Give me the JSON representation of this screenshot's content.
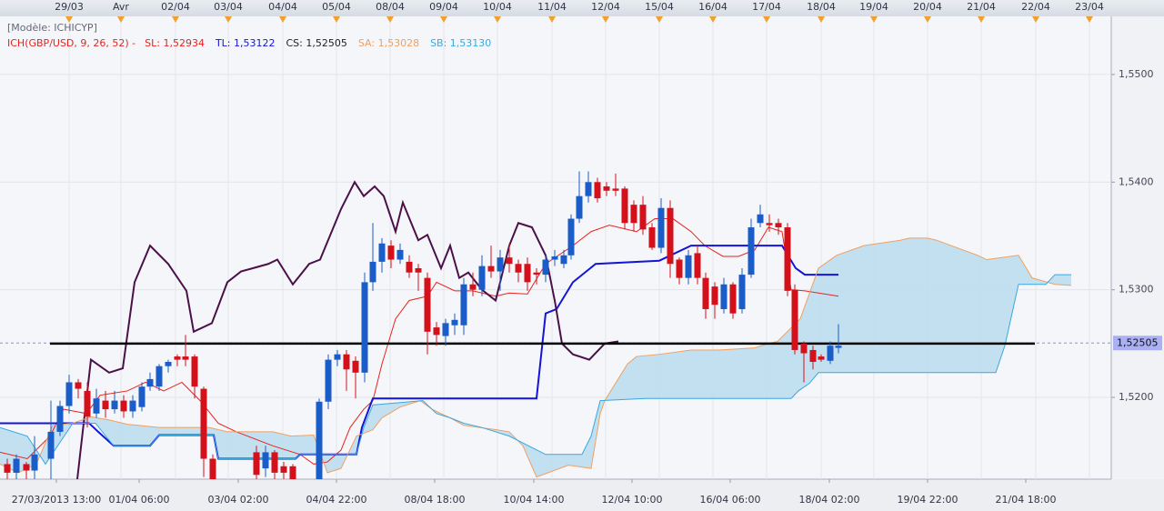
{
  "chart_data": {
    "type": "candlestick",
    "model_label": "[Modèle: ICHICYP]",
    "indicator_label": "ICH(GBP/USD, 9, 26, 52) -",
    "up_color": "#1a5cc8",
    "down_color": "#d4111b",
    "cloud_color": "#b9dcee",
    "xlim": [
      0,
      122.2
    ],
    "ylim": [
      1.5124,
      1.5554
    ],
    "yticks": [
      {
        "value": 1.52,
        "label": "1,5200"
      },
      {
        "value": 1.53,
        "label": "1,5300"
      },
      {
        "value": 1.54,
        "label": "1,5400"
      },
      {
        "value": 1.55,
        "label": "1,5500"
      }
    ],
    "top_ticks": [
      {
        "value": 7.6,
        "label": "29/03"
      },
      {
        "value": 13.3,
        "label": "Avr"
      },
      {
        "value": 19.3,
        "label": "02/04"
      },
      {
        "value": 25.1,
        "label": "03/04"
      },
      {
        "value": 31.1,
        "label": "04/04"
      },
      {
        "value": 37.0,
        "label": "05/04"
      },
      {
        "value": 42.9,
        "label": "08/04"
      },
      {
        "value": 48.8,
        "label": "09/04"
      },
      {
        "value": 54.7,
        "label": "10/04"
      },
      {
        "value": 60.7,
        "label": "11/04"
      },
      {
        "value": 66.6,
        "label": "12/04"
      },
      {
        "value": 72.5,
        "label": "15/04"
      },
      {
        "value": 78.4,
        "label": "16/04"
      },
      {
        "value": 84.3,
        "label": "17/04"
      },
      {
        "value": 90.3,
        "label": "18/04"
      },
      {
        "value": 96.1,
        "label": "19/04"
      },
      {
        "value": 102.0,
        "label": "20/04"
      },
      {
        "value": 107.9,
        "label": "21/04"
      },
      {
        "value": 113.9,
        "label": "22/04"
      },
      {
        "value": 119.8,
        "label": "23/04"
      }
    ],
    "bottom_ticks": [
      {
        "value": 6.2,
        "label": "27/03/2013 13:00"
      },
      {
        "value": 15.3,
        "label": "01/04 06:00"
      },
      {
        "value": 26.2,
        "label": "03/04 02:00"
      },
      {
        "value": 37.0,
        "label": "04/04 22:00"
      },
      {
        "value": 47.8,
        "label": "08/04 18:00"
      },
      {
        "value": 58.7,
        "label": "10/04 14:00"
      },
      {
        "value": 69.5,
        "label": "12/04 10:00"
      },
      {
        "value": 80.3,
        "label": "16/04 06:00"
      },
      {
        "value": 91.2,
        "label": "18/04 02:00"
      },
      {
        "value": 102.0,
        "label": "19/04 22:00"
      },
      {
        "value": 112.8,
        "label": "21/04 18:00"
      }
    ],
    "last_price": {
      "value": 1.52505,
      "label": "1,52505"
    },
    "x": [
      0.8,
      1.8,
      2.9,
      3.8,
      5.6,
      6.6,
      7.6,
      8.6,
      9.6,
      10.6,
      11.6,
      12.6,
      13.6,
      14.6,
      15.6,
      16.5,
      17.5,
      18.5,
      19.5,
      20.4,
      21.4,
      22.4,
      23.4,
      28.2,
      29.2,
      30.2,
      31.2,
      32.2,
      35.1,
      36.1,
      37.1,
      38.1,
      39.1,
      40.1,
      41.0,
      42.0,
      43.0,
      44.0,
      45.0,
      46.0,
      47.0,
      48.0,
      49.0,
      50.0,
      51.0,
      52.0,
      53.0,
      54.0,
      55.0,
      56.0,
      57.0,
      58.0,
      59.0,
      60.0,
      61.0,
      62.0,
      62.8,
      63.7,
      64.7,
      65.7,
      66.7,
      67.7,
      68.7,
      69.7,
      70.7,
      71.7,
      72.7,
      73.7,
      74.7,
      75.7,
      76.7,
      77.6,
      78.6,
      79.6,
      80.6,
      81.6,
      82.6,
      83.6,
      84.6,
      85.6,
      86.6,
      87.4,
      88.4,
      89.4,
      90.3,
      91.3,
      92.2
    ],
    "open": [
      1.5138,
      1.513,
      1.5138,
      1.5132,
      1.5143,
      1.5168,
      1.5192,
      1.5214,
      1.5206,
      1.5185,
      1.5197,
      1.5189,
      1.5197,
      1.5187,
      1.5191,
      1.521,
      1.521,
      1.5229,
      1.5238,
      1.5238,
      1.5238,
      1.5208,
      1.5143,
      1.5149,
      1.5134,
      1.5149,
      1.5136,
      1.5136,
      1.5124,
      1.5196,
      1.5235,
      1.524,
      1.5234,
      1.5223,
      1.5307,
      1.5326,
      1.5341,
      1.5328,
      1.5326,
      1.532,
      1.5311,
      1.5265,
      1.5257,
      1.5267,
      1.5267,
      1.5305,
      1.53,
      1.5322,
      1.5317,
      1.533,
      1.5324,
      1.5324,
      1.5316,
      1.5314,
      1.5328,
      1.5324,
      1.5332,
      1.5366,
      1.5387,
      1.54,
      1.5396,
      1.5394,
      1.5394,
      1.5379,
      1.5379,
      1.5358,
      1.5339,
      1.5376,
      1.5328,
      1.5311,
      1.5334,
      1.5311,
      1.5303,
      1.5282,
      1.5305,
      1.5282,
      1.5314,
      1.5362,
      1.5362,
      1.5362,
      1.5358,
      1.53,
      1.525,
      1.5244,
      1.5238,
      1.5234,
      1.5246
    ],
    "high": [
      1.5143,
      1.5147,
      1.514,
      1.5164,
      1.5197,
      1.5197,
      1.5221,
      1.5217,
      1.5214,
      1.5208,
      1.5206,
      1.5206,
      1.5202,
      1.5202,
      1.5214,
      1.5223,
      1.5231,
      1.5235,
      1.524,
      1.5258,
      1.524,
      1.521,
      1.5147,
      1.5155,
      1.5155,
      1.5151,
      1.514,
      1.5138,
      1.5199,
      1.524,
      1.5244,
      1.5244,
      1.5238,
      1.5316,
      1.5362,
      1.5348,
      1.5346,
      1.5343,
      1.5332,
      1.5324,
      1.5316,
      1.527,
      1.5273,
      1.5278,
      1.5311,
      1.5316,
      1.5332,
      1.5341,
      1.5337,
      1.5343,
      1.5328,
      1.533,
      1.532,
      1.5332,
      1.5337,
      1.5337,
      1.537,
      1.541,
      1.541,
      1.5404,
      1.54,
      1.5408,
      1.5396,
      1.5383,
      1.5387,
      1.5362,
      1.5385,
      1.5383,
      1.533,
      1.5337,
      1.5341,
      1.5316,
      1.5307,
      1.5311,
      1.5307,
      1.532,
      1.5366,
      1.5379,
      1.537,
      1.5366,
      1.5362,
      1.5305,
      1.5252,
      1.5248,
      1.524,
      1.5252,
      1.5268
    ],
    "low": [
      1.5124,
      1.5124,
      1.5124,
      1.5124,
      1.5124,
      1.5164,
      1.5185,
      1.5199,
      1.5172,
      1.5181,
      1.5181,
      1.5185,
      1.5181,
      1.5181,
      1.5187,
      1.5206,
      1.5206,
      1.5223,
      1.5229,
      1.5229,
      1.5199,
      1.5126,
      1.5124,
      1.5124,
      1.5126,
      1.5124,
      1.5124,
      1.5124,
      1.5124,
      1.5189,
      1.5229,
      1.5206,
      1.5199,
      1.5214,
      1.5299,
      1.5316,
      1.532,
      1.5324,
      1.5311,
      1.5299,
      1.524,
      1.5248,
      1.5248,
      1.5258,
      1.5258,
      1.5294,
      1.5294,
      1.5311,
      1.5299,
      1.5316,
      1.5307,
      1.5299,
      1.5305,
      1.5307,
      1.5322,
      1.532,
      1.5328,
      1.5362,
      1.5381,
      1.5381,
      1.5387,
      1.5387,
      1.5356,
      1.5354,
      1.5351,
      1.5337,
      1.5334,
      1.5311,
      1.5305,
      1.5305,
      1.5305,
      1.5273,
      1.5273,
      1.5278,
      1.5273,
      1.5278,
      1.5311,
      1.5358,
      1.5354,
      1.5351,
      1.5294,
      1.524,
      1.5214,
      1.5226,
      1.5233,
      1.5231,
      1.5241
    ],
    "close": [
      1.513,
      1.5143,
      1.5132,
      1.5147,
      1.5168,
      1.5192,
      1.5214,
      1.5208,
      1.5182,
      1.5199,
      1.5189,
      1.5197,
      1.5187,
      1.5197,
      1.521,
      1.5217,
      1.5229,
      1.5233,
      1.5235,
      1.5235,
      1.521,
      1.5143,
      1.5124,
      1.5128,
      1.5149,
      1.513,
      1.513,
      1.5124,
      1.5196,
      1.5235,
      1.524,
      1.5226,
      1.5223,
      1.5307,
      1.5326,
      1.5343,
      1.5328,
      1.5337,
      1.5316,
      1.5316,
      1.5261,
      1.5258,
      1.5269,
      1.5272,
      1.5305,
      1.53,
      1.5322,
      1.5317,
      1.533,
      1.5324,
      1.5316,
      1.5307,
      1.5314,
      1.5328,
      1.5331,
      1.5332,
      1.5366,
      1.5387,
      1.54,
      1.5385,
      1.5392,
      1.5392,
      1.5362,
      1.5362,
      1.5356,
      1.5339,
      1.5376,
      1.5324,
      1.5311,
      1.5332,
      1.5311,
      1.5282,
      1.5286,
      1.5305,
      1.5278,
      1.5314,
      1.5358,
      1.537,
      1.536,
      1.5358,
      1.5299,
      1.5244,
      1.5241,
      1.5233,
      1.5235,
      1.5248,
      1.5248
    ],
    "cloud": {
      "upper": "SA",
      "lower": "SB"
    },
    "lines": [
      {
        "name": "SL: 1,52934",
        "color": "#e8231e",
        "width": 1,
        "x": [
          0,
          3,
          5.5,
          7,
          9.5,
          11,
          14,
          16,
          18,
          20,
          22,
          24,
          26,
          30,
          33,
          34.5,
          36,
          37.5,
          38.5,
          40,
          41,
          42,
          43.5,
          45,
          47,
          48,
          50,
          52,
          54.5,
          56,
          58,
          60,
          63,
          65,
          67,
          70,
          72,
          74,
          76,
          77.5,
          79.5,
          81.2,
          83,
          84.5,
          86,
          87,
          88.5,
          92.2
        ],
        "values": [
          1.5149,
          1.5143,
          1.5164,
          1.5189,
          1.5185,
          1.5202,
          1.5206,
          1.5214,
          1.5206,
          1.5214,
          1.5197,
          1.5176,
          1.5168,
          1.5155,
          1.5147,
          1.5138,
          1.514,
          1.5151,
          1.5172,
          1.5189,
          1.5197,
          1.5231,
          1.5273,
          1.529,
          1.5294,
          1.5307,
          1.5299,
          1.5299,
          1.5294,
          1.5297,
          1.5296,
          1.5324,
          1.5341,
          1.5354,
          1.536,
          1.5354,
          1.5366,
          1.5366,
          1.5354,
          1.5341,
          1.5331,
          1.5331,
          1.5337,
          1.5358,
          1.5354,
          1.53,
          1.5299,
          1.5294
        ]
      },
      {
        "name": "TL: 1,53122",
        "color": "#1414d8",
        "width": 2,
        "x": [
          0,
          9.8,
          10.8,
          12.5,
          16.5,
          17.5,
          23.5,
          24,
          32.5,
          33,
          39.2,
          39.8,
          41,
          59,
          60,
          61.2,
          63,
          65.5,
          72.5,
          76,
          86,
          87.5,
          88.5,
          92.2
        ],
        "values": [
          1.5176,
          1.5176,
          1.5168,
          1.5155,
          1.5155,
          1.5165,
          1.5165,
          1.5143,
          1.5143,
          1.5147,
          1.5147,
          1.5172,
          1.5199,
          1.5199,
          1.5278,
          1.5282,
          1.5307,
          1.5324,
          1.5327,
          1.5341,
          1.5341,
          1.532,
          1.5314,
          1.5314
        ]
      },
      {
        "name": "CS: 1,52505",
        "color": "#4a1048",
        "width": 2,
        "x": [
          8.5,
          10,
          12,
          13.5,
          14.8,
          16.5,
          18.5,
          20.5,
          21.3,
          23.3,
          25,
          26.5,
          27.8,
          29.5,
          30.5,
          32.2,
          34,
          35.2,
          37.5,
          39,
          40,
          41.2,
          42.2,
          43.5,
          44.3,
          46,
          47,
          48.5,
          49.5,
          50.5,
          51.5,
          53,
          54.5,
          56,
          57,
          58.5,
          60,
          61,
          61.8,
          63,
          64.8,
          66.5,
          68
        ],
        "values": [
          1.5124,
          1.5235,
          1.5223,
          1.5227,
          1.5307,
          1.5341,
          1.5324,
          1.5299,
          1.5261,
          1.5269,
          1.5307,
          1.5317,
          1.532,
          1.5324,
          1.5328,
          1.5305,
          1.5324,
          1.5328,
          1.5375,
          1.54,
          1.5387,
          1.5396,
          1.5387,
          1.5354,
          1.5381,
          1.5346,
          1.5351,
          1.532,
          1.5341,
          1.5311,
          1.5316,
          1.53,
          1.529,
          1.5341,
          1.5362,
          1.5358,
          1.5332,
          1.529,
          1.525,
          1.524,
          1.5235,
          1.525,
          1.5252
        ]
      },
      {
        "name": "SA: 1,53028",
        "color": "#f0a060",
        "width": 1,
        "x": [
          0,
          2,
          4,
          5.8,
          8,
          10,
          12,
          14,
          17.5,
          23,
          25,
          30,
          32,
          34.5,
          36,
          37.5,
          39.2,
          41,
          42,
          44,
          46.2,
          47.5,
          49.5,
          51,
          54.5,
          56,
          57.5,
          59,
          62.5,
          65,
          66,
          66.5,
          69,
          70,
          72.5,
          76,
          79,
          83,
          84.5,
          85.5,
          88,
          90,
          92,
          95,
          99,
          100,
          102,
          103,
          107.5,
          108.5,
          112,
          113.5,
          116,
          117.8
        ],
        "values": [
          1.5138,
          1.513,
          1.5138,
          1.5174,
          1.5176,
          1.5182,
          1.5179,
          1.5175,
          1.5172,
          1.5172,
          1.5168,
          1.5168,
          1.5164,
          1.5165,
          1.513,
          1.5134,
          1.5164,
          1.517,
          1.5181,
          1.5191,
          1.5197,
          1.5189,
          1.5181,
          1.5174,
          1.517,
          1.5168,
          1.5155,
          1.5126,
          1.5137,
          1.5134,
          1.5185,
          1.5197,
          1.5231,
          1.5238,
          1.524,
          1.5244,
          1.5244,
          1.5246,
          1.525,
          1.5252,
          1.5273,
          1.532,
          1.5332,
          1.5341,
          1.5346,
          1.5348,
          1.5348,
          1.5346,
          1.5332,
          1.5328,
          1.5332,
          1.5311,
          1.5305,
          1.5304
        ]
      },
      {
        "name": "SB: 1,53130",
        "color": "#38a8e0",
        "width": 1,
        "x": [
          0,
          3,
          5,
          8,
          10.5,
          12.5,
          16.5,
          17.5,
          23.5,
          24,
          32.5,
          33,
          39.2,
          40,
          41,
          46.5,
          48,
          49.5,
          51,
          53,
          54.5,
          56,
          60,
          64,
          65,
          66,
          71,
          87,
          87.8,
          89,
          90,
          109.5,
          110.5,
          112,
          115,
          116,
          117.8
        ],
        "values": [
          1.5172,
          1.5164,
          1.5138,
          1.5176,
          1.5176,
          1.5155,
          1.5155,
          1.5165,
          1.5165,
          1.5143,
          1.5143,
          1.5147,
          1.5147,
          1.5172,
          1.5193,
          1.5197,
          1.5185,
          1.5181,
          1.5176,
          1.5172,
          1.5168,
          1.5164,
          1.5147,
          1.5147,
          1.5164,
          1.5197,
          1.5199,
          1.5199,
          1.5206,
          1.5213,
          1.5223,
          1.5223,
          1.5248,
          1.5305,
          1.5305,
          1.5314,
          1.5314
        ]
      }
    ],
    "hline": {
      "color": "#000000",
      "x": [
        5.5,
        113.8
      ],
      "values": [
        1.525,
        1.525
      ]
    }
  }
}
